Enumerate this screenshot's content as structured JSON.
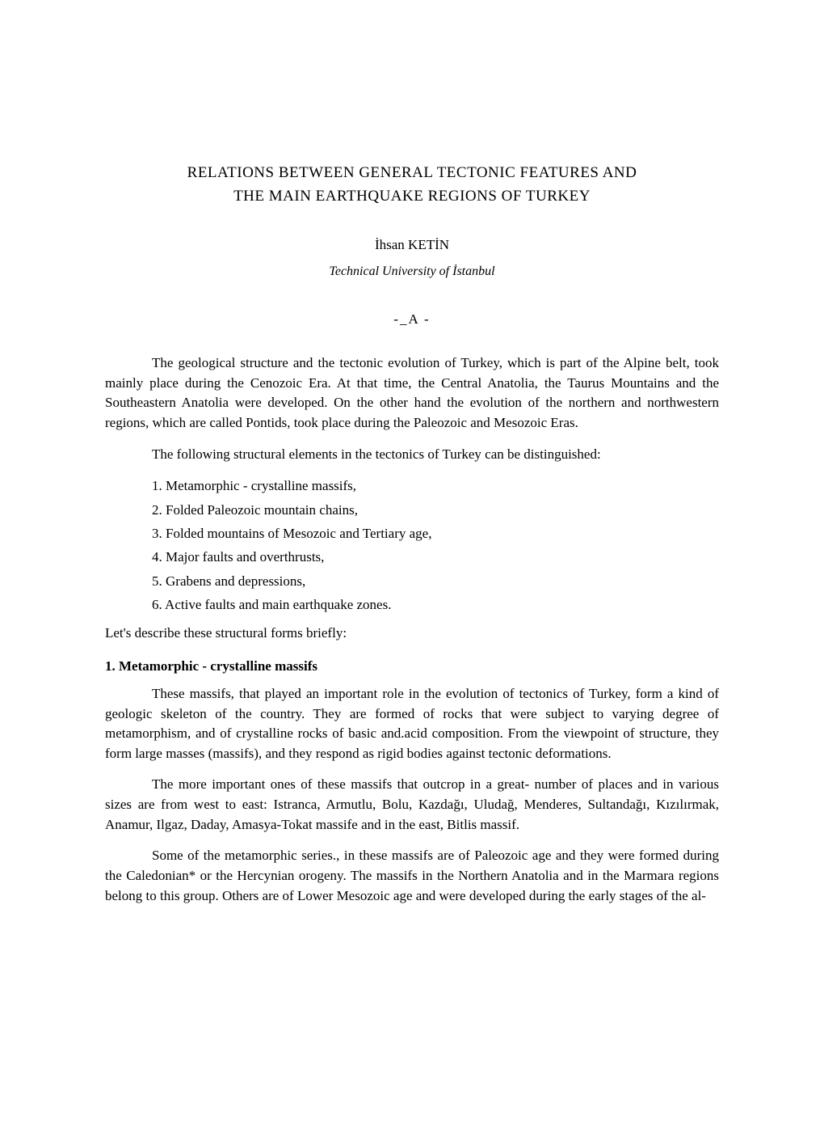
{
  "title_line1": "RELATIONS BETWEEN GENERAL TECTONIC FEATURES AND",
  "title_line2": "THE MAIN EARTHQUAKE REGIONS OF TURKEY",
  "author": "İhsan   KETİN",
  "affiliation": "Technical   University     of  İstanbul",
  "section_marker": "-_A -",
  "para1": "The geological   structure and the  tectonic  evolution   of Turkey,   which is part of the Alpine belt,  took mainly place  during the Cenozoic Era. At that time, the Central Anatolia, the Taurus  Mountains and the Southeastern  Anatolia were developed. On the  other  hand  the evolution  of the northern  and northwestern regions, which are called Pontids, took place  during the Paleozoic  and Mesozoic Eras.",
  "para2": "The following structural elements in the tectonics of Turkey can be distinguished:",
  "list": {
    "item1": "1. Metamorphic - crystalline massifs,",
    "item2": "2.  Folded Paleozoic mountain chains,",
    "item3": "3.  Folded mountains of Mesozoic and Tertiary age,",
    "item4": "4.  Major faults and overthrusts,",
    "item5": "5.  Grabens and  depressions,",
    "item6": "6.  Active faults and main earthquake zones."
  },
  "para3": "Let's describe these structural forms briefly:",
  "heading1": "1.  Metamorphic - crystalline massifs",
  "para4": "These massifs, that played an important role in the  evolution  of tectonics of Turkey, form a kind of geologic skeleton of the country.  They are formed of rocks that  were subject to  varying  degree of metamorphism, and  of crystalline rocks of basic and.acid composition.  From  the  viewpoint of structure, they form large masses   (massifs),  and  they respond as   rigid bodies against  tectonic  deformations.",
  "para5": "The more important ones  of these massifs that outcrop   in a great- number of places  and in   various sizes are  from west to   east: Istranca,   Armutlu, Bolu, Kazdağı, Uludağ, Menderes, Sultandağı, Kızılırmak, Anamur,  Ilgaz,  Daday,  Amasya-Tokat massife and in  the east,  Bitlis  massif.",
  "para6": "Some of the metamorphic series., in   these massifs are of  Paleozoic age and they were formed during the   Caledonian* or the Hercynian   orogeny. The massifs in the Northern Anatolia and in  the  Marmara regions belong to this group. Others are of Lower Mesozoic age and were   developed during the early stages of the al-"
}
